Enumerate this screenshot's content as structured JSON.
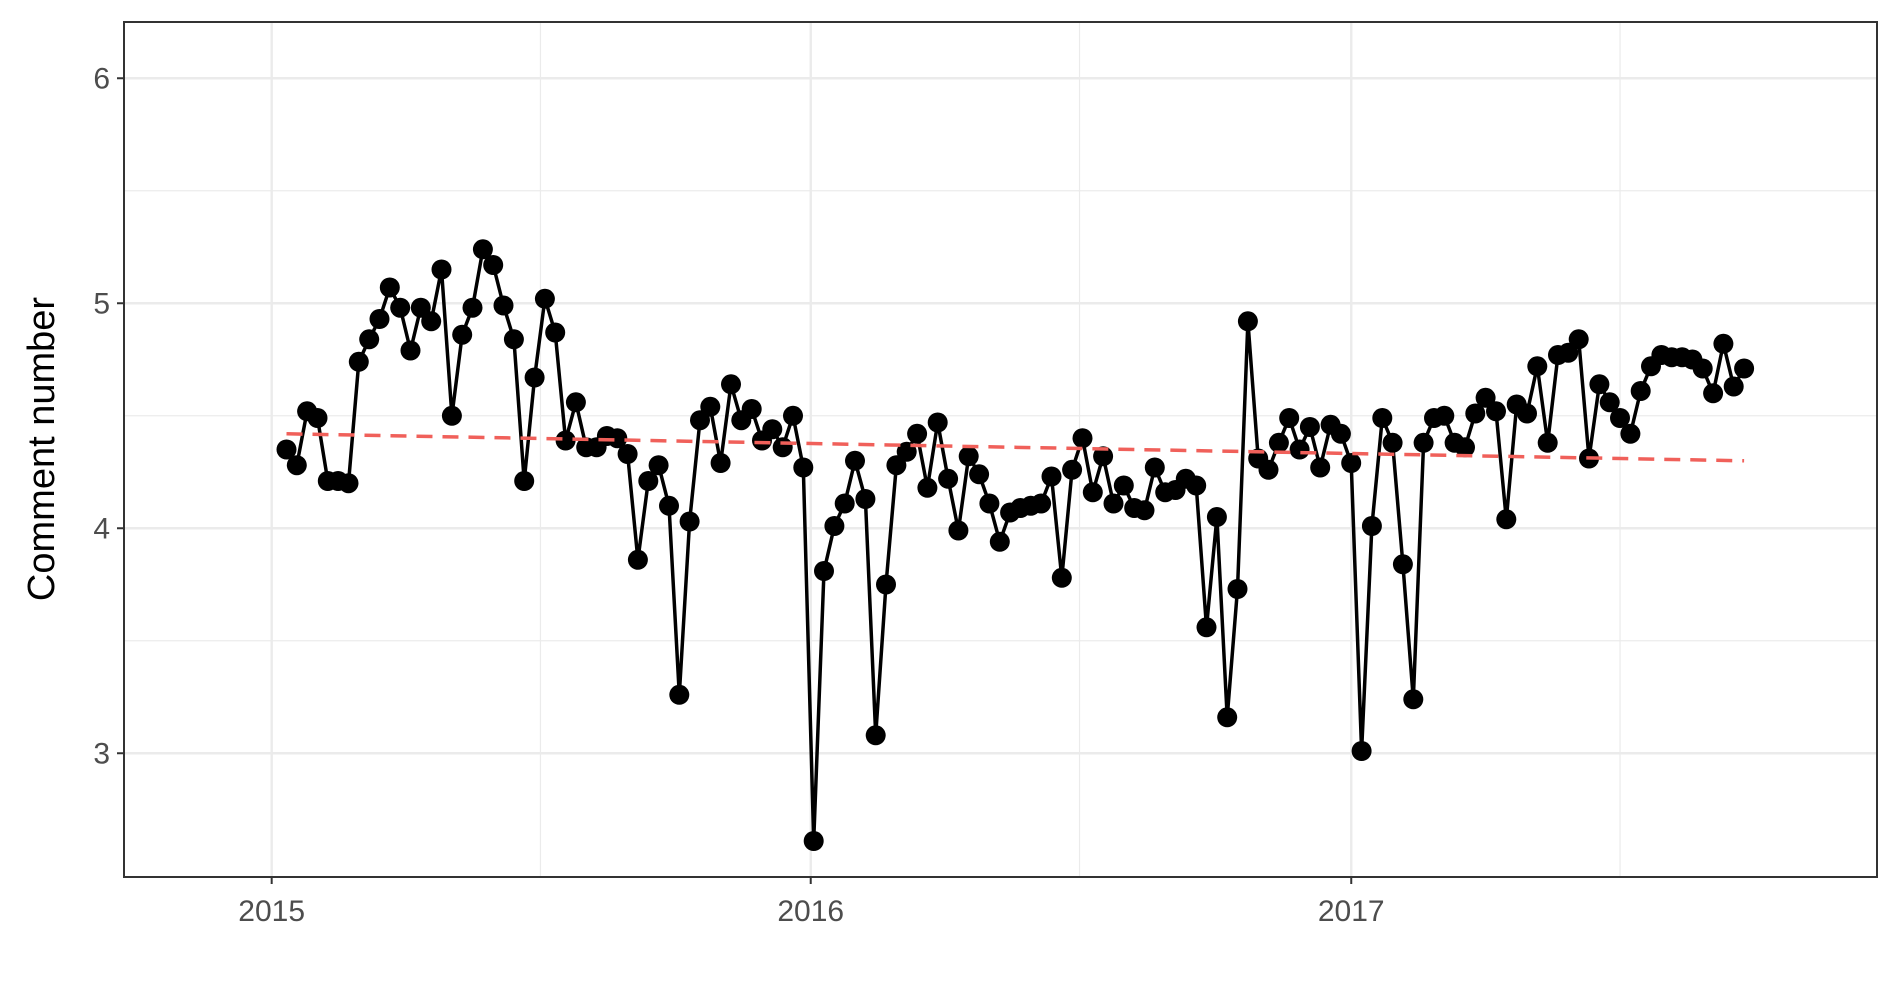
{
  "chart_data": {
    "type": "line",
    "title": "",
    "xlabel": "",
    "ylabel": "Comment number",
    "xlim": [
      "2014-09-23",
      "2017-12-23"
    ],
    "ylim": [
      2.45,
      6.25
    ],
    "x_ticks": [
      {
        "date": "2015-01-01",
        "label": "2015"
      },
      {
        "date": "2016-01-01",
        "label": "2016"
      },
      {
        "date": "2017-01-01",
        "label": "2017"
      }
    ],
    "y_ticks": [
      {
        "value": 3,
        "label": "3"
      },
      {
        "value": 4,
        "label": "4"
      },
      {
        "value": 5,
        "label": "5"
      },
      {
        "value": 6,
        "label": "6"
      }
    ],
    "y_minor_ticks": [
      3.5,
      4.5,
      5.5
    ],
    "x_minor_ticks": [
      "2015-07-02",
      "2016-07-01",
      "2017-07-02"
    ],
    "grid": true,
    "legend": "none",
    "series": [
      {
        "kind": "line+points",
        "color": "#000000",
        "x": [
          "2015-01-11",
          "2015-01-18",
          "2015-01-25",
          "2015-02-01",
          "2015-02-08",
          "2015-02-15",
          "2015-02-22",
          "2015-03-01",
          "2015-03-08",
          "2015-03-15",
          "2015-03-22",
          "2015-03-29",
          "2015-04-05",
          "2015-04-12",
          "2015-04-19",
          "2015-04-26",
          "2015-05-03",
          "2015-05-10",
          "2015-05-17",
          "2015-05-24",
          "2015-05-31",
          "2015-06-07",
          "2015-06-14",
          "2015-06-21",
          "2015-06-28",
          "2015-07-05",
          "2015-07-12",
          "2015-07-19",
          "2015-07-26",
          "2015-08-02",
          "2015-08-09",
          "2015-08-16",
          "2015-08-23",
          "2015-08-30",
          "2015-09-06",
          "2015-09-13",
          "2015-09-20",
          "2015-09-27",
          "2015-10-04",
          "2015-10-11",
          "2015-10-18",
          "2015-10-25",
          "2015-11-01",
          "2015-11-08",
          "2015-11-15",
          "2015-11-22",
          "2015-11-29",
          "2015-12-06",
          "2015-12-13",
          "2015-12-20",
          "2015-12-27",
          "2016-01-03",
          "2016-01-10",
          "2016-01-17",
          "2016-01-24",
          "2016-01-31",
          "2016-02-07",
          "2016-02-14",
          "2016-02-21",
          "2016-02-28",
          "2016-03-06",
          "2016-03-13",
          "2016-03-20",
          "2016-03-27",
          "2016-04-03",
          "2016-04-10",
          "2016-04-17",
          "2016-04-24",
          "2016-05-01",
          "2016-05-08",
          "2016-05-15",
          "2016-05-22",
          "2016-05-29",
          "2016-06-05",
          "2016-06-12",
          "2016-06-19",
          "2016-06-26",
          "2016-07-03",
          "2016-07-10",
          "2016-07-17",
          "2016-07-24",
          "2016-07-31",
          "2016-08-07",
          "2016-08-14",
          "2016-08-21",
          "2016-08-28",
          "2016-09-04",
          "2016-09-11",
          "2016-09-18",
          "2016-09-25",
          "2016-10-02",
          "2016-10-09",
          "2016-10-16",
          "2016-10-23",
          "2016-10-30",
          "2016-11-06",
          "2016-11-13",
          "2016-11-20",
          "2016-11-27",
          "2016-12-04",
          "2016-12-11",
          "2016-12-18",
          "2016-12-25",
          "2017-01-01",
          "2017-01-08",
          "2017-01-15",
          "2017-01-22",
          "2017-01-29",
          "2017-02-05",
          "2017-02-12",
          "2017-02-19",
          "2017-02-26",
          "2017-03-05",
          "2017-03-12",
          "2017-03-19",
          "2017-03-26",
          "2017-04-02",
          "2017-04-09",
          "2017-04-16",
          "2017-04-23",
          "2017-04-30",
          "2017-05-07",
          "2017-05-14",
          "2017-05-21",
          "2017-05-28",
          "2017-06-04",
          "2017-06-11",
          "2017-06-18",
          "2017-06-25",
          "2017-07-02",
          "2017-07-09",
          "2017-07-16",
          "2017-07-23",
          "2017-07-30",
          "2017-08-06",
          "2017-08-13",
          "2017-08-20",
          "2017-08-27",
          "2017-09-03",
          "2017-09-10",
          "2017-09-17",
          "2017-09-24"
        ],
        "y": [
          4.35,
          4.28,
          4.52,
          4.49,
          4.21,
          4.21,
          4.2,
          4.74,
          4.84,
          4.93,
          5.07,
          4.98,
          4.79,
          4.98,
          4.92,
          5.15,
          4.5,
          4.86,
          4.98,
          5.24,
          5.17,
          4.99,
          4.84,
          4.21,
          4.67,
          5.02,
          4.87,
          4.39,
          4.56,
          4.36,
          4.36,
          4.41,
          4.4,
          4.33,
          3.86,
          4.21,
          4.28,
          4.1,
          3.26,
          4.03,
          4.48,
          4.54,
          4.29,
          4.64,
          4.48,
          4.53,
          4.39,
          4.44,
          4.36,
          4.5,
          4.27,
          2.61,
          3.81,
          4.01,
          4.11,
          4.3,
          4.13,
          3.08,
          3.75,
          4.28,
          4.34,
          4.42,
          4.18,
          4.47,
          4.22,
          3.99,
          4.32,
          4.24,
          4.11,
          3.94,
          4.07,
          4.09,
          4.1,
          4.11,
          4.23,
          3.78,
          4.26,
          4.4,
          4.16,
          4.32,
          4.11,
          4.19,
          4.09,
          4.08,
          4.27,
          4.16,
          4.17,
          4.22,
          4.19,
          3.56,
          4.05,
          3.16,
          3.73,
          4.92,
          4.31,
          4.26,
          4.38,
          4.49,
          4.35,
          4.45,
          4.27,
          4.46,
          4.42,
          4.29,
          3.01,
          4.01,
          4.49,
          4.38,
          3.84,
          3.24,
          4.38,
          4.49,
          4.5,
          4.38,
          4.36,
          4.51,
          4.58,
          4.52,
          4.04,
          4.55,
          4.51,
          4.72,
          4.38,
          4.77,
          4.78,
          4.84,
          4.31,
          4.64,
          4.56,
          4.49,
          4.42,
          4.61,
          4.72,
          4.77,
          4.76,
          4.76,
          4.75,
          4.71,
          4.6,
          4.82,
          4.63,
          4.71
        ]
      },
      {
        "kind": "trend",
        "style": "dashed",
        "color": "#f0605a",
        "x": [
          "2015-01-11",
          "2017-09-24"
        ],
        "y": [
          4.42,
          4.3
        ]
      }
    ]
  }
}
